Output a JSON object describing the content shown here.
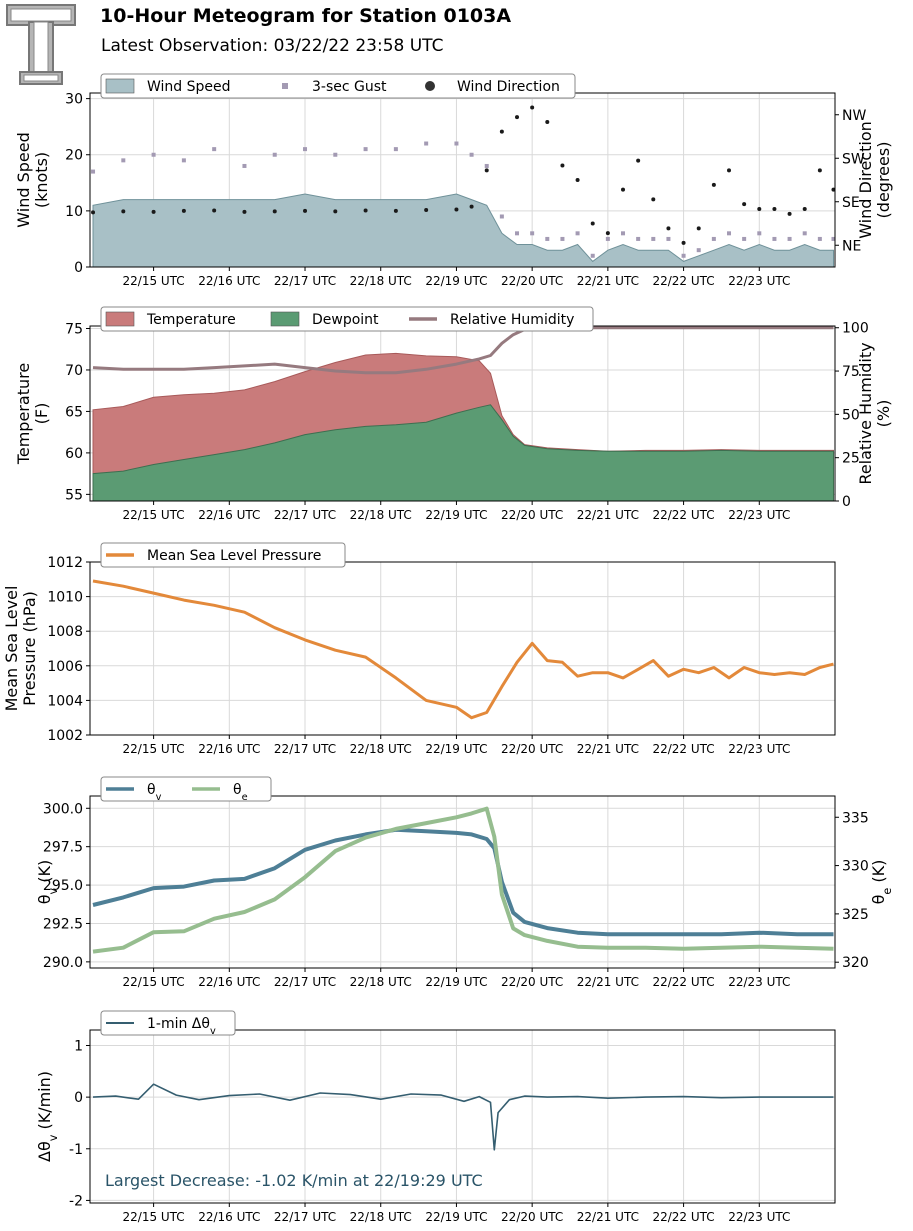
{
  "header": {
    "title": "10-Hour Meteogram for Station 0103A",
    "subtitle": "Latest Observation: 03/22/22 23:58 UTC"
  },
  "logo_icon": "texas-tech-double-t-logo",
  "x_ticks": [
    "22/15 UTC",
    "22/16 UTC",
    "22/17 UTC",
    "22/18 UTC",
    "22/19 UTC",
    "22/20 UTC",
    "22/21 UTC",
    "22/22 UTC",
    "22/23 UTC"
  ],
  "chart_data": [
    {
      "id": "wind",
      "type": "area",
      "ylabel": [
        "Wind Speed",
        "(knots)"
      ],
      "ylabel_right": [
        "Wind Direction",
        "(degrees)"
      ],
      "ylim": [
        0,
        31
      ],
      "yticks": [
        0,
        10,
        20,
        30
      ],
      "ylim_right": [
        0,
        360
      ],
      "yticks_right": [
        {
          "value": 45,
          "label": "NE"
        },
        {
          "value": 135,
          "label": "SE"
        },
        {
          "value": 225,
          "label": "SW"
        },
        {
          "value": 315,
          "label": "NW"
        }
      ],
      "grid": true,
      "legend_position": "top-left",
      "legend": [
        {
          "label": "Wind Speed",
          "kind": "patch",
          "color": "#a8c0c6"
        },
        {
          "label": "3-sec Gust",
          "kind": "square",
          "color": "#a39ab3"
        },
        {
          "label": "Wind Direction",
          "kind": "dot",
          "color": "#333333"
        }
      ],
      "x": [
        14.2,
        14.6,
        15.0,
        15.4,
        15.8,
        16.2,
        16.6,
        17.0,
        17.4,
        17.8,
        18.2,
        18.6,
        19.0,
        19.2,
        19.4,
        19.6,
        19.8,
        20.0,
        20.2,
        20.4,
        20.6,
        20.8,
        21.0,
        21.2,
        21.4,
        21.6,
        21.8,
        22.0,
        22.2,
        22.4,
        22.6,
        22.8,
        23.0,
        23.2,
        23.4,
        23.6,
        23.8,
        23.98
      ],
      "series": [
        {
          "name": "Wind Speed",
          "values": [
            11,
            12,
            12,
            12,
            12,
            12,
            12,
            13,
            12,
            12,
            12,
            12,
            13,
            12,
            11,
            6,
            4,
            4,
            3,
            3,
            4,
            1,
            3,
            4,
            3,
            3,
            3,
            1,
            2,
            3,
            4,
            3,
            4,
            3,
            3,
            4,
            3,
            3
          ],
          "color": "#a8c0c6"
        },
        {
          "name": "3-sec Gust",
          "values": [
            17,
            19,
            20,
            19,
            21,
            18,
            20,
            21,
            20,
            21,
            21,
            22,
            22,
            20,
            18,
            9,
            6,
            6,
            5,
            5,
            6,
            2,
            5,
            6,
            5,
            5,
            5,
            2,
            3,
            5,
            6,
            5,
            6,
            5,
            5,
            6,
            5,
            5
          ],
          "color": "#a39ab3"
        },
        {
          "name": "Wind Direction",
          "values": [
            113,
            115,
            114,
            116,
            117,
            114,
            115,
            116,
            115,
            117,
            116,
            118,
            119,
            125,
            200,
            280,
            310,
            330,
            300,
            210,
            180,
            90,
            70,
            160,
            220,
            140,
            80,
            50,
            80,
            170,
            200,
            130,
            120,
            120,
            110,
            120,
            200,
            160
          ],
          "color": "#1a1a1a"
        }
      ]
    },
    {
      "id": "temp",
      "type": "area",
      "ylabel": [
        "Temperature",
        "(F)"
      ],
      "ylabel_right": [
        "Relative Humidity",
        "(%)"
      ],
      "ylim": [
        54.2,
        75.3
      ],
      "yticks": [
        55,
        60,
        65,
        70,
        75
      ],
      "ylim_right": [
        0,
        101
      ],
      "yticks_right": [
        {
          "value": 0,
          "label": "0"
        },
        {
          "value": 25,
          "label": "25"
        },
        {
          "value": 50,
          "label": "50"
        },
        {
          "value": 75,
          "label": "75"
        },
        {
          "value": 100,
          "label": "100"
        }
      ],
      "grid": true,
      "legend_position": "top-left",
      "legend": [
        {
          "label": "Temperature",
          "kind": "patch",
          "color": "#c97b7b"
        },
        {
          "label": "Dewpoint",
          "kind": "patch",
          "color": "#5b9b73"
        },
        {
          "label": "Relative Humidity",
          "kind": "line",
          "color": "#967a7f"
        }
      ],
      "x": [
        14.2,
        14.6,
        15.0,
        15.4,
        15.8,
        16.2,
        16.6,
        17.0,
        17.4,
        17.8,
        18.2,
        18.6,
        19.0,
        19.3,
        19.45,
        19.6,
        19.75,
        19.9,
        20.2,
        20.6,
        21.0,
        21.5,
        22.0,
        22.5,
        23.0,
        23.5,
        23.98
      ],
      "series": [
        {
          "name": "Temperature",
          "values": [
            65.2,
            65.6,
            66.7,
            67.0,
            67.2,
            67.6,
            68.6,
            69.8,
            70.9,
            71.8,
            72.0,
            71.7,
            71.6,
            71.1,
            69.6,
            64.5,
            62.2,
            61.0,
            60.6,
            60.4,
            60.2,
            60.3,
            60.3,
            60.4,
            60.3,
            60.3,
            60.3
          ],
          "color": "#c97b7b"
        },
        {
          "name": "Dewpoint",
          "values": [
            57.5,
            57.8,
            58.6,
            59.2,
            59.8,
            60.4,
            61.2,
            62.2,
            62.8,
            63.2,
            63.4,
            63.7,
            64.8,
            65.5,
            65.8,
            64.0,
            62.0,
            60.9,
            60.5,
            60.3,
            60.2,
            60.2,
            60.2,
            60.3,
            60.2,
            60.2,
            60.2
          ],
          "color": "#5b9b73"
        },
        {
          "name": "Relative Humidity",
          "values": [
            77,
            76,
            76,
            76,
            77,
            78,
            79,
            77,
            75,
            74,
            74,
            76,
            79,
            82,
            84,
            91,
            96,
            99,
            100,
            100,
            100,
            100,
            100,
            100,
            100,
            100,
            100
          ],
          "color": "#967a7f"
        }
      ]
    },
    {
      "id": "pressure",
      "type": "line",
      "ylabel": [
        "Mean Sea Level",
        "Pressure (hPa)"
      ],
      "ylim": [
        1002,
        1012
      ],
      "yticks": [
        1002,
        1004,
        1006,
        1008,
        1010,
        1012
      ],
      "grid": true,
      "legend_position": "top-left",
      "legend": [
        {
          "label": "Mean Sea Level Pressure",
          "kind": "line",
          "color": "#e3893a"
        }
      ],
      "x": [
        14.2,
        14.6,
        15.0,
        15.4,
        15.8,
        16.2,
        16.6,
        17.0,
        17.4,
        17.8,
        18.2,
        18.6,
        19.0,
        19.2,
        19.4,
        19.6,
        19.8,
        20.0,
        20.2,
        20.4,
        20.6,
        20.8,
        21.0,
        21.2,
        21.4,
        21.6,
        21.8,
        22.0,
        22.2,
        22.4,
        22.6,
        22.8,
        23.0,
        23.2,
        23.4,
        23.6,
        23.8,
        23.98
      ],
      "series": [
        {
          "name": "Mean Sea Level Pressure",
          "values": [
            1010.9,
            1010.6,
            1010.2,
            1009.8,
            1009.5,
            1009.1,
            1008.2,
            1007.5,
            1006.9,
            1006.5,
            1005.3,
            1004.0,
            1003.6,
            1003.0,
            1003.3,
            1004.8,
            1006.2,
            1007.3,
            1006.3,
            1006.2,
            1005.4,
            1005.6,
            1005.6,
            1005.3,
            1005.8,
            1006.3,
            1005.4,
            1005.8,
            1005.6,
            1005.9,
            1005.3,
            1005.9,
            1005.6,
            1005.5,
            1005.6,
            1005.5,
            1005.9,
            1006.1
          ],
          "color": "#e3893a"
        }
      ]
    },
    {
      "id": "theta",
      "type": "line",
      "ylabel": [
        "θv (K)"
      ],
      "ylabel_right": [
        "θe (K)"
      ],
      "ylim": [
        289.6,
        300.8
      ],
      "yticks": [
        290.0,
        292.5,
        295.0,
        297.5,
        300.0
      ],
      "ytick_labels": [
        "290.0",
        "292.5",
        "295.0",
        "297.5",
        "300.0"
      ],
      "ylim_right": [
        319.4,
        337.2
      ],
      "yticks_right": [
        {
          "value": 320,
          "label": "320"
        },
        {
          "value": 325,
          "label": "325"
        },
        {
          "value": 330,
          "label": "330"
        },
        {
          "value": 335,
          "label": "335"
        }
      ],
      "grid": true,
      "legend_position": "top-left",
      "legend": [
        {
          "label": "θv",
          "kind": "line",
          "color": "#4e7f96"
        },
        {
          "label": "θe",
          "kind": "line",
          "color": "#96bd8f"
        }
      ],
      "x": [
        14.2,
        14.6,
        15.0,
        15.4,
        15.8,
        16.2,
        16.6,
        17.0,
        17.4,
        17.8,
        18.2,
        18.6,
        19.0,
        19.2,
        19.4,
        19.5,
        19.6,
        19.75,
        19.9,
        20.2,
        20.6,
        21.0,
        21.5,
        22.0,
        22.5,
        23.0,
        23.5,
        23.98
      ],
      "series": [
        {
          "name": "θv",
          "values": [
            293.7,
            294.2,
            294.8,
            294.9,
            295.3,
            295.4,
            296.1,
            297.3,
            297.9,
            298.3,
            298.6,
            298.5,
            298.4,
            298.3,
            298.0,
            297.4,
            295.2,
            293.2,
            292.6,
            292.2,
            291.9,
            291.8,
            291.8,
            291.8,
            291.8,
            291.9,
            291.8,
            291.8
          ],
          "color": "#4e7f96"
        },
        {
          "name": "θe",
          "values": [
            321.1,
            321.5,
            323.1,
            323.2,
            324.5,
            325.2,
            326.5,
            328.8,
            331.5,
            332.9,
            333.8,
            334.4,
            335.0,
            335.4,
            335.9,
            333.0,
            327.0,
            323.5,
            322.8,
            322.2,
            321.6,
            321.5,
            321.5,
            321.4,
            321.5,
            321.6,
            321.5,
            321.4
          ],
          "color": "#96bd8f"
        }
      ]
    },
    {
      "id": "dtheta",
      "type": "line",
      "ylabel": [
        "Δθv (K/min)"
      ],
      "ylim": [
        -2.05,
        1.3
      ],
      "yticks": [
        -2,
        -1,
        0,
        1
      ],
      "grid": true,
      "legend_position": "top-left",
      "legend": [
        {
          "label": "1-min Δθv",
          "kind": "line",
          "color": "#355e70"
        }
      ],
      "x": [
        14.2,
        14.5,
        14.8,
        15.0,
        15.3,
        15.6,
        16.0,
        16.4,
        16.8,
        17.2,
        17.6,
        18.0,
        18.4,
        18.8,
        19.1,
        19.3,
        19.45,
        19.5,
        19.55,
        19.7,
        19.9,
        20.2,
        20.6,
        21.0,
        21.5,
        22.0,
        22.5,
        23.0,
        23.5,
        23.98
      ],
      "series": [
        {
          "name": "1-min Δθv",
          "values": [
            0.0,
            0.02,
            -0.04,
            0.25,
            0.04,
            -0.05,
            0.03,
            0.06,
            -0.06,
            0.08,
            0.05,
            -0.04,
            0.06,
            0.04,
            -0.08,
            0.01,
            -0.1,
            -1.02,
            -0.3,
            -0.05,
            0.02,
            0.0,
            0.01,
            -0.02,
            0.0,
            0.01,
            -0.01,
            0.0,
            0.0,
            0.0
          ],
          "color": "#355e70"
        }
      ],
      "annotation": "Largest Decrease: -1.02 K/min at 22/19:29 UTC"
    }
  ]
}
